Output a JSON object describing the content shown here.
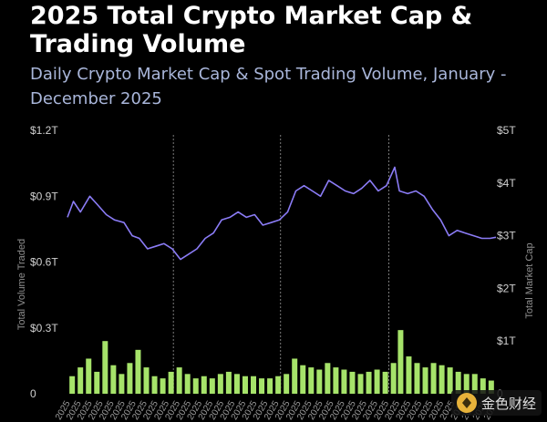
{
  "chart_data": {
    "type": "bar+line",
    "title": "2025 Total Crypto Market Cap & Trading Volume",
    "subtitle": "Daily Crypto Market Cap & Spot Trading Volume, January - December 2025",
    "y_left": {
      "label": "Total Volume Traded",
      "ticks": [
        "$1.2T",
        "$0.9T",
        "$0.6T",
        "$0.3T",
        "0"
      ],
      "values": [
        1.2,
        0.9,
        0.6,
        0.3,
        0
      ],
      "ylim": [
        0,
        1.2
      ]
    },
    "y_right": {
      "label": "Total Market Cap",
      "ticks": [
        "$5T",
        "$4T",
        "$3T",
        "$2T",
        "$1T",
        "0"
      ],
      "values": [
        5,
        4,
        3,
        2,
        1,
        0
      ],
      "ylim": [
        0,
        5
      ]
    },
    "x_tick_suffix": "2025",
    "quarter_dividers": [
      "2025-04-01",
      "2025-07-01",
      "2025-10-01"
    ],
    "series": [
      {
        "name": "Total Market Cap",
        "type": "line",
        "axis": "right",
        "unit": "T USD",
        "color": "#8b7cf6",
        "points": [
          [
            "2025-01-01",
            3.35
          ],
          [
            "2025-01-06",
            3.65
          ],
          [
            "2025-01-12",
            3.45
          ],
          [
            "2025-01-20",
            3.75
          ],
          [
            "2025-01-26",
            3.6
          ],
          [
            "2025-02-03",
            3.4
          ],
          [
            "2025-02-10",
            3.3
          ],
          [
            "2025-02-18",
            3.25
          ],
          [
            "2025-02-25",
            3.0
          ],
          [
            "2025-03-03",
            2.95
          ],
          [
            "2025-03-10",
            2.75
          ],
          [
            "2025-03-17",
            2.8
          ],
          [
            "2025-03-24",
            2.85
          ],
          [
            "2025-03-31",
            2.75
          ],
          [
            "2025-04-07",
            2.55
          ],
          [
            "2025-04-14",
            2.65
          ],
          [
            "2025-04-21",
            2.75
          ],
          [
            "2025-04-28",
            2.95
          ],
          [
            "2025-05-05",
            3.05
          ],
          [
            "2025-05-12",
            3.3
          ],
          [
            "2025-05-19",
            3.35
          ],
          [
            "2025-05-26",
            3.45
          ],
          [
            "2025-06-02",
            3.35
          ],
          [
            "2025-06-09",
            3.4
          ],
          [
            "2025-06-16",
            3.2
          ],
          [
            "2025-06-23",
            3.25
          ],
          [
            "2025-06-30",
            3.3
          ],
          [
            "2025-07-07",
            3.45
          ],
          [
            "2025-07-14",
            3.85
          ],
          [
            "2025-07-21",
            3.95
          ],
          [
            "2025-07-28",
            3.85
          ],
          [
            "2025-08-04",
            3.75
          ],
          [
            "2025-08-11",
            4.05
          ],
          [
            "2025-08-18",
            3.95
          ],
          [
            "2025-08-25",
            3.85
          ],
          [
            "2025-09-01",
            3.8
          ],
          [
            "2025-09-08",
            3.9
          ],
          [
            "2025-09-15",
            4.05
          ],
          [
            "2025-09-22",
            3.85
          ],
          [
            "2025-09-29",
            3.95
          ],
          [
            "2025-10-06",
            4.3
          ],
          [
            "2025-10-10",
            3.85
          ],
          [
            "2025-10-17",
            3.8
          ],
          [
            "2025-10-24",
            3.85
          ],
          [
            "2025-10-31",
            3.75
          ],
          [
            "2025-11-07",
            3.5
          ],
          [
            "2025-11-14",
            3.3
          ],
          [
            "2025-11-21",
            3.0
          ],
          [
            "2025-11-28",
            3.1
          ],
          [
            "2025-12-05",
            3.05
          ],
          [
            "2025-12-12",
            3.0
          ],
          [
            "2025-12-19",
            2.95
          ],
          [
            "2025-12-26",
            2.95
          ],
          [
            "2025-12-31",
            2.97
          ]
        ]
      },
      {
        "name": "Total Volume Traded",
        "type": "bar",
        "axis": "left",
        "unit": "T USD",
        "color": "#a6e36a",
        "points": [
          [
            "2025-01-05",
            0.08
          ],
          [
            "2025-01-12",
            0.12
          ],
          [
            "2025-01-19",
            0.16
          ],
          [
            "2025-01-26",
            0.1
          ],
          [
            "2025-02-02",
            0.24
          ],
          [
            "2025-02-09",
            0.13
          ],
          [
            "2025-02-16",
            0.09
          ],
          [
            "2025-02-23",
            0.14
          ],
          [
            "2025-03-02",
            0.2
          ],
          [
            "2025-03-09",
            0.12
          ],
          [
            "2025-03-16",
            0.08
          ],
          [
            "2025-03-23",
            0.07
          ],
          [
            "2025-03-30",
            0.1
          ],
          [
            "2025-04-06",
            0.12
          ],
          [
            "2025-04-13",
            0.09
          ],
          [
            "2025-04-20",
            0.07
          ],
          [
            "2025-04-27",
            0.08
          ],
          [
            "2025-05-04",
            0.07
          ],
          [
            "2025-05-11",
            0.09
          ],
          [
            "2025-05-18",
            0.1
          ],
          [
            "2025-05-25",
            0.09
          ],
          [
            "2025-06-01",
            0.08
          ],
          [
            "2025-06-08",
            0.08
          ],
          [
            "2025-06-15",
            0.07
          ],
          [
            "2025-06-22",
            0.07
          ],
          [
            "2025-06-29",
            0.08
          ],
          [
            "2025-07-06",
            0.09
          ],
          [
            "2025-07-13",
            0.16
          ],
          [
            "2025-07-20",
            0.13
          ],
          [
            "2025-07-27",
            0.12
          ],
          [
            "2025-08-03",
            0.11
          ],
          [
            "2025-08-10",
            0.14
          ],
          [
            "2025-08-17",
            0.12
          ],
          [
            "2025-08-24",
            0.11
          ],
          [
            "2025-08-31",
            0.1
          ],
          [
            "2025-09-07",
            0.09
          ],
          [
            "2025-09-14",
            0.1
          ],
          [
            "2025-09-21",
            0.11
          ],
          [
            "2025-09-28",
            0.1
          ],
          [
            "2025-10-05",
            0.14
          ],
          [
            "2025-10-11",
            0.29
          ],
          [
            "2025-10-18",
            0.17
          ],
          [
            "2025-10-25",
            0.14
          ],
          [
            "2025-11-01",
            0.12
          ],
          [
            "2025-11-08",
            0.14
          ],
          [
            "2025-11-15",
            0.13
          ],
          [
            "2025-11-22",
            0.12
          ],
          [
            "2025-11-29",
            0.1
          ],
          [
            "2025-12-06",
            0.09
          ],
          [
            "2025-12-13",
            0.09
          ],
          [
            "2025-12-20",
            0.07
          ],
          [
            "2025-12-27",
            0.06
          ]
        ]
      }
    ]
  },
  "colors": {
    "background": "#000000",
    "title": "#ffffff",
    "subtitle": "#a9b6da",
    "line": "#8b7cf6",
    "bars": "#a6e36a",
    "divider": "#9a9a9a"
  },
  "watermark": {
    "text": "金色财经",
    "icon": "coin-logo-icon"
  }
}
